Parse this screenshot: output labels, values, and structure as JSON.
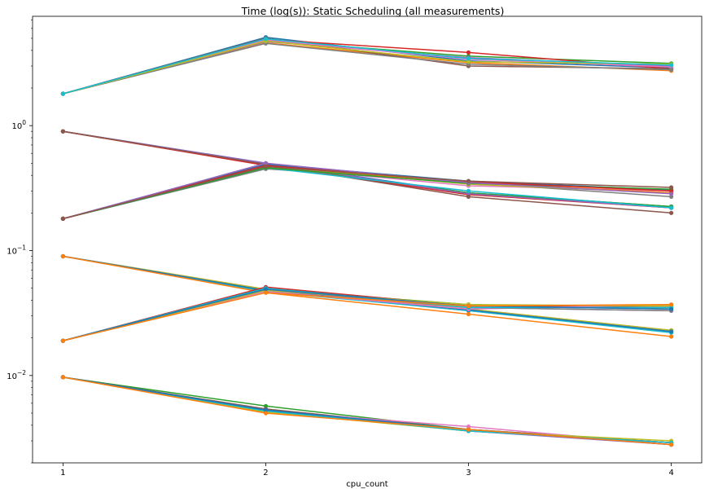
{
  "chart_data": {
    "type": "line",
    "title": "Time (log(s)): Static Scheduling (all measurements)",
    "xlabel": "cpu_count",
    "ylabel": "",
    "y_scale": "log",
    "x": [
      1,
      2,
      3,
      4
    ],
    "xticks": [
      "1",
      "2",
      "3",
      "4"
    ],
    "yticks": [
      {
        "value": 0.01,
        "base": "10",
        "exp": "−2"
      },
      {
        "value": 0.1,
        "base": "10",
        "exp": "−1"
      },
      {
        "value": 1,
        "base": "10",
        "exp": "0"
      }
    ],
    "xlim": [
      0.85,
      4.15
    ],
    "ylim": [
      0.002,
      7.5
    ],
    "grid": false,
    "legend": "none",
    "palette": [
      "#1f77b4",
      "#ff7f0e",
      "#2ca02c",
      "#d62728",
      "#9467bd",
      "#8c564b",
      "#e377c2",
      "#7f7f7f",
      "#bcbd22",
      "#17becf"
    ],
    "groups": [
      {
        "start": 1.8,
        "ends": [
          [
            5.1,
            3.3,
            2.9
          ],
          [
            4.6,
            3.2,
            2.75
          ],
          [
            4.8,
            3.6,
            3.15
          ],
          [
            4.9,
            3.85,
            2.85
          ],
          [
            4.7,
            3.5,
            3.0
          ],
          [
            5.0,
            3.0,
            2.85
          ],
          [
            4.85,
            3.4,
            2.95
          ],
          [
            4.55,
            3.1,
            2.8
          ],
          [
            4.75,
            3.25,
            3.1
          ],
          [
            4.95,
            3.45,
            3.05
          ]
        ]
      },
      {
        "start": 0.9,
        "ends": [
          [
            0.5,
            0.29,
            0.225
          ],
          [
            0.49,
            0.285,
            0.22
          ],
          [
            0.485,
            0.29,
            0.225
          ],
          [
            0.48,
            0.28,
            0.22
          ],
          [
            0.5,
            0.285,
            0.22
          ],
          [
            0.49,
            0.27,
            0.2
          ]
        ]
      },
      {
        "start": 0.18,
        "ends": [
          [
            0.47,
            0.33,
            0.3
          ],
          [
            0.45,
            0.35,
            0.27
          ],
          [
            0.48,
            0.34,
            0.29
          ],
          [
            0.46,
            0.3,
            0.22
          ],
          [
            0.49,
            0.36,
            0.305
          ],
          [
            0.47,
            0.35,
            0.29
          ],
          [
            0.46,
            0.345,
            0.31
          ],
          [
            0.48,
            0.355,
            0.3
          ],
          [
            0.5,
            0.35,
            0.285
          ],
          [
            0.47,
            0.36,
            0.32
          ]
        ]
      },
      {
        "start": 0.09,
        "ends": [
          [
            0.049,
            0.034,
            0.023
          ],
          [
            0.048,
            0.033,
            0.0225
          ],
          [
            0.049,
            0.034,
            0.023
          ],
          [
            0.047,
            0.033,
            0.022
          ],
          [
            0.048,
            0.0335,
            0.0225
          ],
          [
            0.046,
            0.031,
            0.0205
          ]
        ]
      },
      {
        "start": 0.019,
        "ends": [
          [
            0.049,
            0.037,
            0.034
          ],
          [
            0.051,
            0.036,
            0.036
          ],
          [
            0.048,
            0.035,
            0.033
          ],
          [
            0.05,
            0.036,
            0.035
          ],
          [
            0.047,
            0.034,
            0.037
          ],
          [
            0.049,
            0.035,
            0.033
          ],
          [
            0.048,
            0.037,
            0.036
          ],
          [
            0.05,
            0.035,
            0.035
          ],
          [
            0.049,
            0.036,
            0.034
          ],
          [
            0.046,
            0.036,
            0.037
          ]
        ]
      },
      {
        "start": 0.0097,
        "ends": [
          [
            0.0057,
            0.0037,
            0.0029
          ],
          [
            0.0052,
            0.0036,
            0.0029
          ],
          [
            0.0053,
            0.0036,
            0.0028
          ],
          [
            0.0054,
            0.0037,
            0.0029
          ],
          [
            0.0052,
            0.0039,
            0.0028
          ],
          [
            0.0053,
            0.0036,
            0.0029
          ],
          [
            0.0051,
            0.0036,
            0.003
          ],
          [
            0.0052,
            0.0036,
            0.0029
          ],
          [
            0.0053,
            0.0037,
            0.0028
          ],
          [
            0.005,
            0.0037,
            0.0028
          ]
        ]
      }
    ]
  }
}
